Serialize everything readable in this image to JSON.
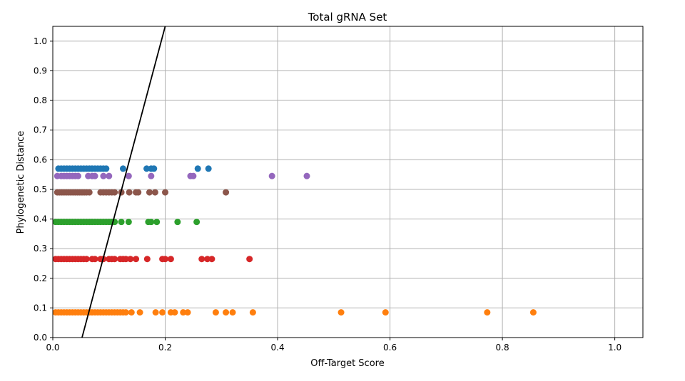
{
  "chart_data": {
    "type": "scatter",
    "title": "Total gRNA Set",
    "xlabel": "Off-Target Score",
    "ylabel": "Phylogenetic Distance",
    "xlim": [
      0.0,
      1.05
    ],
    "ylim": [
      0.0,
      1.05
    ],
    "xticks": [
      "0.0",
      "0.2",
      "0.4",
      "0.6",
      "0.8",
      "1.0"
    ],
    "yticks": [
      "0.0",
      "0.1",
      "0.2",
      "0.3",
      "0.4",
      "0.5",
      "0.6",
      "0.7",
      "0.8",
      "0.9",
      "1.0"
    ],
    "grid": true,
    "legend": "none",
    "line": {
      "x": [
        0.052,
        0.2
      ],
      "y": [
        0.0,
        1.05
      ],
      "color": "#000000"
    },
    "series": [
      {
        "color": "#1f77b4",
        "y": 0.57,
        "x": [
          0.01,
          0.015,
          0.02,
          0.025,
          0.03,
          0.035,
          0.04,
          0.045,
          0.05,
          0.055,
          0.06,
          0.065,
          0.07,
          0.075,
          0.08,
          0.085,
          0.09,
          0.095,
          0.125,
          0.167,
          0.175,
          0.18,
          0.258,
          0.277
        ]
      },
      {
        "color": "#9467bd",
        "y": 0.545,
        "x": [
          0.008,
          0.015,
          0.02,
          0.025,
          0.03,
          0.035,
          0.04,
          0.045,
          0.063,
          0.07,
          0.075,
          0.09,
          0.1,
          0.135,
          0.175,
          0.245,
          0.25,
          0.39,
          0.452
        ]
      },
      {
        "color": "#8c564b",
        "y": 0.49,
        "x": [
          0.008,
          0.012,
          0.016,
          0.02,
          0.024,
          0.028,
          0.032,
          0.036,
          0.04,
          0.044,
          0.048,
          0.052,
          0.056,
          0.06,
          0.065,
          0.085,
          0.09,
          0.095,
          0.1,
          0.105,
          0.11,
          0.122,
          0.136,
          0.148,
          0.152,
          0.172,
          0.182,
          0.2,
          0.308
        ]
      },
      {
        "color": "#2ca02c",
        "y": 0.39,
        "x": [
          0.005,
          0.01,
          0.015,
          0.02,
          0.025,
          0.03,
          0.035,
          0.04,
          0.045,
          0.05,
          0.055,
          0.06,
          0.065,
          0.07,
          0.075,
          0.08,
          0.085,
          0.09,
          0.095,
          0.1,
          0.105,
          0.11,
          0.122,
          0.135,
          0.17,
          0.175,
          0.185,
          0.222,
          0.256
        ]
      },
      {
        "color": "#d62728",
        "y": 0.265,
        "x": [
          0.005,
          0.01,
          0.015,
          0.02,
          0.025,
          0.03,
          0.035,
          0.04,
          0.045,
          0.05,
          0.055,
          0.06,
          0.07,
          0.075,
          0.085,
          0.09,
          0.1,
          0.105,
          0.11,
          0.12,
          0.125,
          0.13,
          0.138,
          0.148,
          0.168,
          0.195,
          0.2,
          0.21,
          0.265,
          0.275,
          0.283,
          0.35
        ]
      },
      {
        "color": "#ff7f0e",
        "y": 0.085,
        "x": [
          0.005,
          0.01,
          0.015,
          0.02,
          0.025,
          0.03,
          0.035,
          0.04,
          0.045,
          0.05,
          0.055,
          0.06,
          0.065,
          0.07,
          0.075,
          0.08,
          0.085,
          0.09,
          0.095,
          0.1,
          0.105,
          0.11,
          0.115,
          0.12,
          0.125,
          0.13,
          0.14,
          0.155,
          0.183,
          0.195,
          0.21,
          0.217,
          0.232,
          0.24,
          0.29,
          0.308,
          0.32,
          0.356,
          0.513,
          0.592,
          0.773,
          0.855
        ]
      }
    ]
  }
}
